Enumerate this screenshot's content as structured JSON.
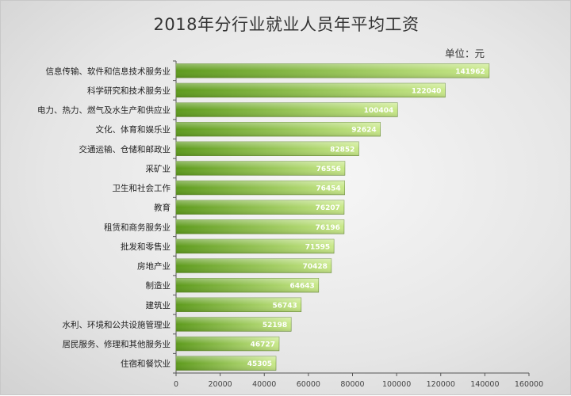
{
  "chart_data": {
    "type": "bar",
    "orientation": "horizontal",
    "title": "2018年分行业就业人员年平均工资",
    "unit_label": "单位：元",
    "categories": [
      "信息传输、软件和信息技术服务业",
      "科学研究和技术服务业",
      "电力、热力、燃气及水生产和供应业",
      "文化、体育和娱乐业",
      "交通运输、仓储和邮政业",
      "采矿业",
      "卫生和社会工作",
      "教育",
      "租赁和商务服务业",
      "批发和零售业",
      "房地产业",
      "制造业",
      "建筑业",
      "水利、环境和公共设施管理业",
      "居民服务、修理和其他服务业",
      "住宿和餐饮业"
    ],
    "values": [
      141962,
      122040,
      100404,
      92624,
      82852,
      76556,
      76454,
      76207,
      76196,
      71595,
      70428,
      64643,
      56743,
      52198,
      46727,
      45305
    ],
    "xlim": [
      0,
      160000
    ],
    "xticks": [
      "0",
      "20000",
      "40000",
      "60000",
      "80000",
      "100000",
      "120000",
      "140000",
      "160000"
    ],
    "grid": false,
    "colors": {
      "bar_light": "#c9e98a",
      "bar_dark": "#5d9a1c",
      "axis": "#555555"
    }
  }
}
